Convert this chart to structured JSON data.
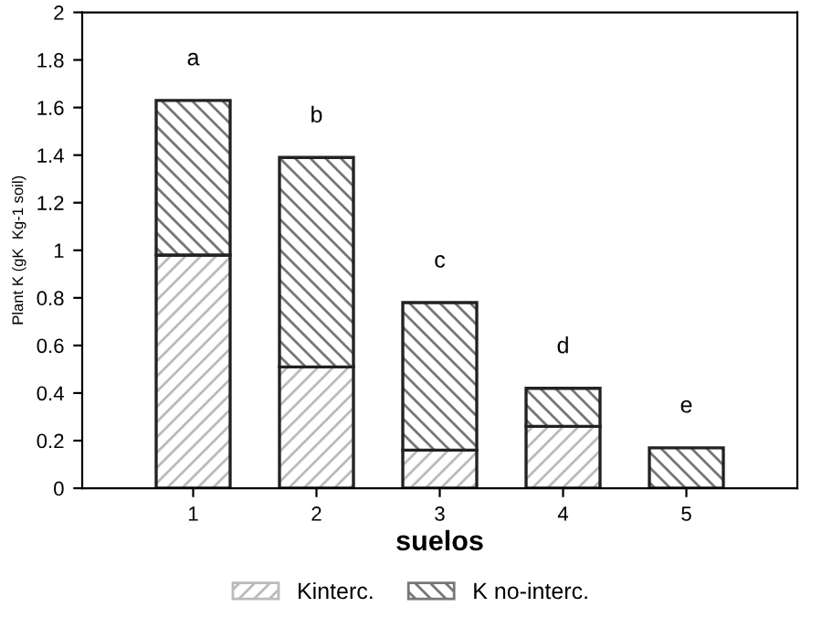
{
  "chart_data": {
    "type": "bar",
    "stacked": true,
    "xlabel": "suelos",
    "ylabel": "Plant K (gK  Kg-1 soil)",
    "categories": [
      "1",
      "2",
      "3",
      "4",
      "5"
    ],
    "series": [
      {
        "name": "Kinterc.",
        "color": "#bbbbbb",
        "values": [
          0.98,
          0.51,
          0.16,
          0.26,
          0.0
        ]
      },
      {
        "name": "K no-interc.",
        "color": "#777777",
        "values": [
          0.65,
          0.88,
          0.62,
          0.16,
          0.17
        ]
      }
    ],
    "ylim": [
      0,
      2
    ],
    "yticks": [
      0,
      0.2,
      0.4,
      0.6,
      0.8,
      1,
      1.2,
      1.4,
      1.6,
      1.8,
      2
    ],
    "annotations": [
      "a",
      "b",
      "c",
      "d",
      "e"
    ],
    "grid": false,
    "legend": "bottom"
  }
}
